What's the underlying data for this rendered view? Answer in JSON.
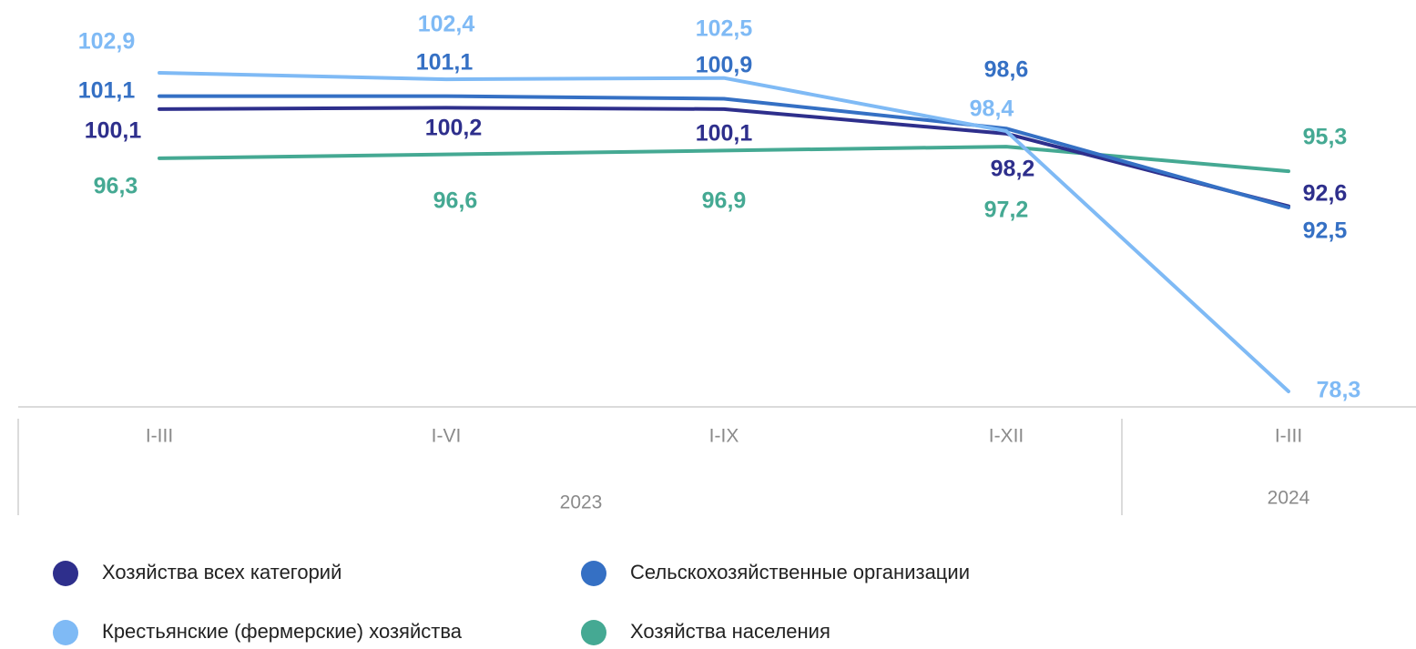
{
  "chart_data": {
    "type": "line",
    "categories": [
      "I-III",
      "I-VI",
      "I-IX",
      "I-XII",
      "I-III"
    ],
    "groups": [
      "2023",
      "2024"
    ],
    "series": [
      {
        "name": "Хозяйства всех категорий",
        "color": "#2e2f8c",
        "values": [
          100.1,
          100.2,
          100.1,
          98.2,
          92.6
        ],
        "value_labels": [
          "100,1",
          "100,2",
          "100,1",
          "98,2",
          "92,6"
        ]
      },
      {
        "name": "Сельскохозяйственные организации",
        "color": "#3570c4",
        "values": [
          101.1,
          101.1,
          100.9,
          98.6,
          92.5
        ],
        "value_labels": [
          "101,1",
          "101,1",
          "100,9",
          "98,6",
          "92,5"
        ]
      },
      {
        "name": "Крестьянские (фермерские) хозяйства",
        "color": "#7fbaf5",
        "values": [
          102.9,
          102.4,
          102.5,
          98.4,
          78.3
        ],
        "value_labels": [
          "102,9",
          "102,4",
          "102,5",
          "98,4",
          "78,3"
        ]
      },
      {
        "name": "Хозяйства населения",
        "color": "#45a993",
        "values": [
          96.3,
          96.6,
          96.9,
          97.2,
          95.3
        ],
        "value_labels": [
          "96,3",
          "96,6",
          "96,9",
          "97,2",
          "95,3"
        ]
      }
    ]
  }
}
